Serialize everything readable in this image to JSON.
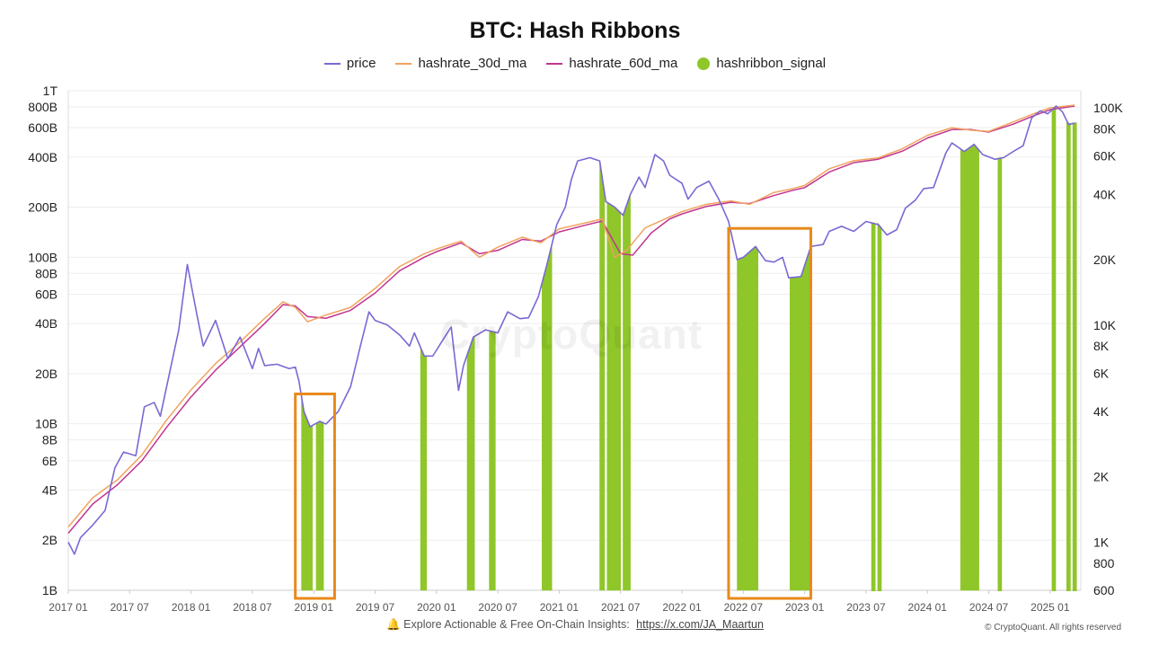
{
  "title": "BTC: Hash Ribbons",
  "watermark": "CryptoQuant",
  "footer": {
    "bell_icon": "bell-icon",
    "text": "Explore Actionable & Free On-Chain Insights:",
    "link": "https://x.com/JA_Maartun"
  },
  "copyright": "© CryptoQuant. All rights reserved",
  "colors": {
    "price": "#7b68d4",
    "hashrate_30d_ma": "#f0a35e",
    "hashrate_60d_ma": "#c2358f",
    "signal": "#8fc629",
    "highlight_box": "#e8891b"
  },
  "chart_data": {
    "type": "line",
    "title": "BTC: Hash Ribbons",
    "legend": [
      "price",
      "hashrate_30d_ma",
      "hashrate_60d_ma",
      "hashribbon_signal"
    ],
    "legend_position": "top",
    "grid": "horizontal",
    "x_ticks": [
      "2017 01",
      "2017 07",
      "2018 01",
      "2018 07",
      "2019 01",
      "2019 07",
      "2020 01",
      "2020 07",
      "2021 01",
      "2021 07",
      "2022 01",
      "2022 07",
      "2023 01",
      "2023 07",
      "2024 01",
      "2024 07",
      "2025 01"
    ],
    "x_range": [
      2017.0,
      2025.25
    ],
    "left_axis": {
      "scale": "log",
      "range": [
        1000000000.0,
        1000000000000.0
      ],
      "ticks": [
        {
          "v": 1000000000.0,
          "l": "1B"
        },
        {
          "v": 2000000000.0,
          "l": "2B"
        },
        {
          "v": 4000000000.0,
          "l": "4B"
        },
        {
          "v": 6000000000.0,
          "l": "6B"
        },
        {
          "v": 8000000000.0,
          "l": "8B"
        },
        {
          "v": 10000000000.0,
          "l": "10B"
        },
        {
          "v": 20000000000.0,
          "l": "20B"
        },
        {
          "v": 40000000000.0,
          "l": "40B"
        },
        {
          "v": 60000000000.0,
          "l": "60B"
        },
        {
          "v": 80000000000.0,
          "l": "80B"
        },
        {
          "v": 100000000000.0,
          "l": "100B"
        },
        {
          "v": 200000000000.0,
          "l": "200B"
        },
        {
          "v": 400000000000.0,
          "l": "400B"
        },
        {
          "v": 600000000000.0,
          "l": "600B"
        },
        {
          "v": 800000000000.0,
          "l": "800B"
        },
        {
          "v": 1000000000000.0,
          "l": "1T"
        }
      ]
    },
    "right_axis": {
      "scale": "log",
      "range": [
        600,
        120000
      ],
      "ticks": [
        {
          "v": 600,
          "l": "600"
        },
        {
          "v": 800,
          "l": "800"
        },
        {
          "v": 1000,
          "l": "1K"
        },
        {
          "v": 2000,
          "l": "2K"
        },
        {
          "v": 4000,
          "l": "4K"
        },
        {
          "v": 6000,
          "l": "6K"
        },
        {
          "v": 8000,
          "l": "8K"
        },
        {
          "v": 10000,
          "l": "10K"
        },
        {
          "v": 20000,
          "l": "20K"
        },
        {
          "v": 40000,
          "l": "40K"
        },
        {
          "v": 60000,
          "l": "60K"
        },
        {
          "v": 80000,
          "l": "80K"
        },
        {
          "v": 100000,
          "l": "100K"
        }
      ]
    },
    "series": [
      {
        "name": "price",
        "axis": "right",
        "points": [
          [
            2017.0,
            1000
          ],
          [
            2017.05,
            880
          ],
          [
            2017.1,
            1050
          ],
          [
            2017.2,
            1200
          ],
          [
            2017.3,
            1400
          ],
          [
            2017.38,
            2200
          ],
          [
            2017.45,
            2600
          ],
          [
            2017.55,
            2500
          ],
          [
            2017.62,
            4200
          ],
          [
            2017.7,
            4400
          ],
          [
            2017.75,
            3800
          ],
          [
            2017.85,
            7000
          ],
          [
            2017.9,
            9500
          ],
          [
            2017.97,
            19000
          ],
          [
            2018.05,
            11000
          ],
          [
            2018.1,
            8000
          ],
          [
            2018.2,
            10500
          ],
          [
            2018.3,
            7000
          ],
          [
            2018.4,
            8800
          ],
          [
            2018.5,
            6300
          ],
          [
            2018.55,
            7800
          ],
          [
            2018.6,
            6500
          ],
          [
            2018.7,
            6600
          ],
          [
            2018.8,
            6300
          ],
          [
            2018.85,
            6400
          ],
          [
            2018.88,
            5500
          ],
          [
            2018.92,
            4000
          ],
          [
            2018.97,
            3400
          ],
          [
            2019.05,
            3600
          ],
          [
            2019.1,
            3500
          ],
          [
            2019.2,
            4000
          ],
          [
            2019.3,
            5200
          ],
          [
            2019.38,
            8000
          ],
          [
            2019.45,
            11500
          ],
          [
            2019.5,
            10500
          ],
          [
            2019.6,
            10000
          ],
          [
            2019.7,
            9000
          ],
          [
            2019.78,
            8000
          ],
          [
            2019.82,
            9200
          ],
          [
            2019.9,
            7200
          ],
          [
            2019.97,
            7200
          ],
          [
            2020.05,
            8500
          ],
          [
            2020.12,
            9800
          ],
          [
            2020.18,
            5000
          ],
          [
            2020.22,
            6500
          ],
          [
            2020.3,
            8800
          ],
          [
            2020.4,
            9500
          ],
          [
            2020.5,
            9200
          ],
          [
            2020.58,
            11500
          ],
          [
            2020.68,
            10700
          ],
          [
            2020.75,
            10800
          ],
          [
            2020.83,
            13500
          ],
          [
            2020.9,
            19000
          ],
          [
            2020.98,
            29000
          ],
          [
            2021.05,
            35000
          ],
          [
            2021.1,
            47000
          ],
          [
            2021.15,
            57000
          ],
          [
            2021.25,
            59000
          ],
          [
            2021.33,
            57000
          ],
          [
            2021.38,
            37000
          ],
          [
            2021.45,
            35000
          ],
          [
            2021.52,
            32000
          ],
          [
            2021.58,
            40000
          ],
          [
            2021.65,
            48000
          ],
          [
            2021.7,
            43000
          ],
          [
            2021.78,
            61000
          ],
          [
            2021.85,
            57000
          ],
          [
            2021.9,
            49000
          ],
          [
            2022.0,
            45000
          ],
          [
            2022.05,
            38000
          ],
          [
            2022.12,
            43000
          ],
          [
            2022.22,
            46000
          ],
          [
            2022.3,
            38000
          ],
          [
            2022.38,
            30000
          ],
          [
            2022.45,
            20000
          ],
          [
            2022.5,
            20500
          ],
          [
            2022.6,
            23000
          ],
          [
            2022.68,
            19800
          ],
          [
            2022.75,
            19500
          ],
          [
            2022.82,
            20500
          ],
          [
            2022.87,
            16500
          ],
          [
            2022.97,
            16700
          ],
          [
            2023.05,
            23000
          ],
          [
            2023.15,
            23500
          ],
          [
            2023.2,
            27000
          ],
          [
            2023.3,
            28500
          ],
          [
            2023.4,
            27000
          ],
          [
            2023.5,
            30000
          ],
          [
            2023.6,
            29000
          ],
          [
            2023.67,
            26000
          ],
          [
            2023.75,
            27500
          ],
          [
            2023.82,
            34500
          ],
          [
            2023.9,
            37500
          ],
          [
            2023.97,
            42500
          ],
          [
            2024.05,
            43000
          ],
          [
            2024.15,
            62000
          ],
          [
            2024.2,
            69000
          ],
          [
            2024.3,
            63000
          ],
          [
            2024.38,
            68000
          ],
          [
            2024.45,
            61000
          ],
          [
            2024.55,
            58000
          ],
          [
            2024.62,
            59000
          ],
          [
            2024.7,
            63000
          ],
          [
            2024.78,
            67000
          ],
          [
            2024.85,
            90000
          ],
          [
            2024.92,
            97000
          ],
          [
            2024.98,
            94000
          ],
          [
            2025.05,
            102000
          ],
          [
            2025.1,
            96000
          ],
          [
            2025.15,
            84000
          ],
          [
            2025.2,
            85000
          ]
        ]
      },
      {
        "name": "hashrate_30d_ma",
        "axis": "left",
        "points": [
          [
            2017.0,
            2400000000.0
          ],
          [
            2017.2,
            3600000000.0
          ],
          [
            2017.4,
            4600000000.0
          ],
          [
            2017.6,
            6500000000.0
          ],
          [
            2017.8,
            10500000000.0
          ],
          [
            2018.0,
            16000000000.0
          ],
          [
            2018.2,
            23000000000.0
          ],
          [
            2018.4,
            31000000000.0
          ],
          [
            2018.6,
            43000000000.0
          ],
          [
            2018.75,
            54000000000.0
          ],
          [
            2018.85,
            50000000000.0
          ],
          [
            2018.95,
            41000000000.0
          ],
          [
            2019.1,
            45000000000.0
          ],
          [
            2019.3,
            50000000000.0
          ],
          [
            2019.5,
            65000000000.0
          ],
          [
            2019.7,
            88000000000.0
          ],
          [
            2019.9,
            105000000000.0
          ],
          [
            2020.0,
            112000000000.0
          ],
          [
            2020.2,
            125000000000.0
          ],
          [
            2020.35,
            100000000000.0
          ],
          [
            2020.5,
            115000000000.0
          ],
          [
            2020.7,
            132000000000.0
          ],
          [
            2020.85,
            122000000000.0
          ],
          [
            2021.0,
            148000000000.0
          ],
          [
            2021.2,
            160000000000.0
          ],
          [
            2021.35,
            170000000000.0
          ],
          [
            2021.45,
            100000000000.0
          ],
          [
            2021.55,
            110000000000.0
          ],
          [
            2021.7,
            150000000000.0
          ],
          [
            2021.9,
            175000000000.0
          ],
          [
            2022.0,
            188000000000.0
          ],
          [
            2022.2,
            208000000000.0
          ],
          [
            2022.4,
            218000000000.0
          ],
          [
            2022.55,
            208000000000.0
          ],
          [
            2022.75,
            245000000000.0
          ],
          [
            2022.9,
            258000000000.0
          ],
          [
            2023.0,
            270000000000.0
          ],
          [
            2023.2,
            340000000000.0
          ],
          [
            2023.4,
            380000000000.0
          ],
          [
            2023.6,
            395000000000.0
          ],
          [
            2023.8,
            450000000000.0
          ],
          [
            2024.0,
            540000000000.0
          ],
          [
            2024.2,
            600000000000.0
          ],
          [
            2024.35,
            580000000000.0
          ],
          [
            2024.5,
            570000000000.0
          ],
          [
            2024.7,
            650000000000.0
          ],
          [
            2024.85,
            720000000000.0
          ],
          [
            2025.0,
            790000000000.0
          ],
          [
            2025.2,
            820000000000.0
          ]
        ]
      },
      {
        "name": "hashrate_60d_ma",
        "axis": "left",
        "points": [
          [
            2017.0,
            2200000000.0
          ],
          [
            2017.2,
            3300000000.0
          ],
          [
            2017.4,
            4300000000.0
          ],
          [
            2017.6,
            6000000000.0
          ],
          [
            2017.8,
            9500000000.0
          ],
          [
            2018.0,
            14500000000.0
          ],
          [
            2018.2,
            21000000000.0
          ],
          [
            2018.4,
            29000000000.0
          ],
          [
            2018.6,
            40000000000.0
          ],
          [
            2018.75,
            52000000000.0
          ],
          [
            2018.85,
            51000000000.0
          ],
          [
            2018.95,
            44000000000.0
          ],
          [
            2019.1,
            43000000000.0
          ],
          [
            2019.3,
            48000000000.0
          ],
          [
            2019.5,
            61000000000.0
          ],
          [
            2019.7,
            83000000000.0
          ],
          [
            2019.9,
            100000000000.0
          ],
          [
            2020.0,
            108000000000.0
          ],
          [
            2020.2,
            122000000000.0
          ],
          [
            2020.35,
            105000000000.0
          ],
          [
            2020.5,
            110000000000.0
          ],
          [
            2020.7,
            128000000000.0
          ],
          [
            2020.85,
            125000000000.0
          ],
          [
            2021.0,
            142000000000.0
          ],
          [
            2021.2,
            155000000000.0
          ],
          [
            2021.35,
            165000000000.0
          ],
          [
            2021.5,
            105000000000.0
          ],
          [
            2021.6,
            103000000000.0
          ],
          [
            2021.75,
            140000000000.0
          ],
          [
            2021.9,
            170000000000.0
          ],
          [
            2022.0,
            182000000000.0
          ],
          [
            2022.2,
            202000000000.0
          ],
          [
            2022.4,
            214000000000.0
          ],
          [
            2022.55,
            210000000000.0
          ],
          [
            2022.75,
            235000000000.0
          ],
          [
            2022.9,
            252000000000.0
          ],
          [
            2023.0,
            262000000000.0
          ],
          [
            2023.2,
            325000000000.0
          ],
          [
            2023.4,
            370000000000.0
          ],
          [
            2023.6,
            388000000000.0
          ],
          [
            2023.8,
            435000000000.0
          ],
          [
            2024.0,
            520000000000.0
          ],
          [
            2024.2,
            585000000000.0
          ],
          [
            2024.35,
            585000000000.0
          ],
          [
            2024.5,
            565000000000.0
          ],
          [
            2024.7,
            630000000000.0
          ],
          [
            2024.85,
            700000000000.0
          ],
          [
            2025.0,
            770000000000.0
          ],
          [
            2025.2,
            810000000000.0
          ]
        ]
      }
    ],
    "signal_periods": [
      [
        2018.9,
        2018.99
      ],
      [
        2019.02,
        2019.08
      ],
      [
        2019.87,
        2019.92
      ],
      [
        2020.25,
        2020.31
      ],
      [
        2020.43,
        2020.48
      ],
      [
        2020.86,
        2020.94
      ],
      [
        2021.33,
        2021.37
      ],
      [
        2021.39,
        2021.5
      ],
      [
        2021.52,
        2021.58
      ],
      [
        2022.45,
        2022.62
      ],
      [
        2022.88,
        2023.04
      ],
      [
        2023.55,
        2023.57
      ],
      [
        2023.6,
        2023.62
      ],
      [
        2024.27,
        2024.42
      ],
      [
        2024.58,
        2024.6
      ],
      [
        2025.02,
        2025.04
      ],
      [
        2025.14,
        2025.16
      ],
      [
        2025.19,
        2025.21
      ]
    ],
    "highlight_boxes": [
      [
        2018.85,
        2019.17
      ],
      [
        2022.38,
        2023.05
      ]
    ]
  }
}
